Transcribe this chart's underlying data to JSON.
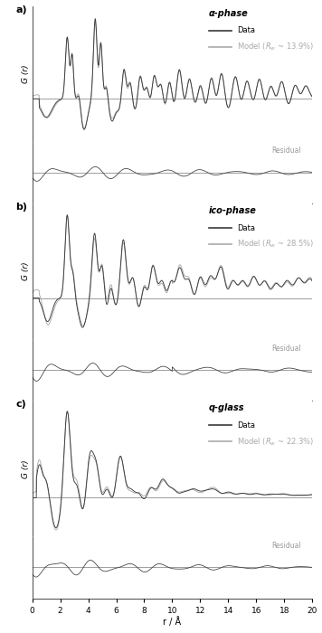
{
  "title_a": "α-phase",
  "title_b": "ico-phase",
  "title_c": "q-glass",
  "legend_data": "Data",
  "legend_model_a": "Model ($R_w$ ~ 13.9%)",
  "legend_model_b": "Model ($R_w$ ~ 28.5%)",
  "legend_model_c": "Model ($R_w$ ~ 22.3%)",
  "xlabel": "r / Å",
  "ylabel": "G (r)",
  "xmin": 0,
  "xmax": 20,
  "xticks": [
    0,
    2,
    4,
    6,
    8,
    10,
    12,
    14,
    16,
    18,
    20
  ],
  "data_color": "#3a3a3a",
  "model_color": "#aaaaaa",
  "residual_label": "Residual",
  "background_color": "#ffffff",
  "panel_labels": [
    "a)",
    "b)",
    "c)"
  ]
}
